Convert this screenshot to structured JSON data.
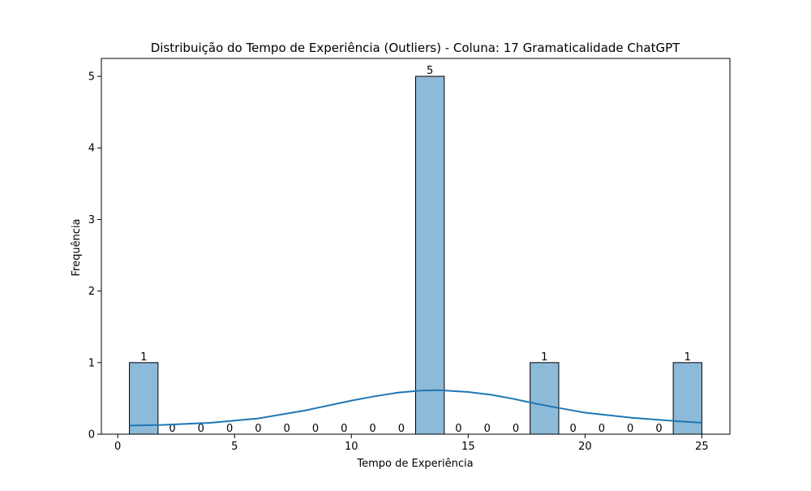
{
  "chart_data": {
    "type": "bar",
    "title": "Distribuição do Tempo de Experiência (Outliers) - Coluna: 17 Gramaticalidade ChatGPT",
    "xlabel": "Tempo de Experiência",
    "ylabel": "Frequência",
    "xlim": [
      -0.7,
      26.2
    ],
    "ylim": [
      0,
      5.25
    ],
    "x_ticks": [
      0,
      5,
      10,
      15,
      20,
      25
    ],
    "y_ticks": [
      0,
      1,
      2,
      3,
      4,
      5
    ],
    "bin_start": 0.5,
    "bin_width": 1.225,
    "values": [
      1,
      0,
      0,
      0,
      0,
      0,
      0,
      0,
      0,
      0,
      5,
      0,
      0,
      0,
      1,
      0,
      0,
      0,
      0,
      1
    ],
    "bar_color": "#8dbad9",
    "bar_edge_color": "#000000",
    "kde_color": "#1f77b4",
    "kde": {
      "x": [
        0.5,
        2,
        4,
        6,
        8,
        10,
        11,
        12,
        13,
        13.75,
        15,
        16,
        17,
        18,
        19,
        20,
        22,
        24,
        25
      ],
      "y": [
        0.12,
        0.13,
        0.16,
        0.22,
        0.33,
        0.47,
        0.53,
        0.58,
        0.61,
        0.615,
        0.59,
        0.55,
        0.49,
        0.42,
        0.36,
        0.3,
        0.23,
        0.18,
        0.16
      ]
    },
    "grid": false,
    "legend": "none"
  }
}
